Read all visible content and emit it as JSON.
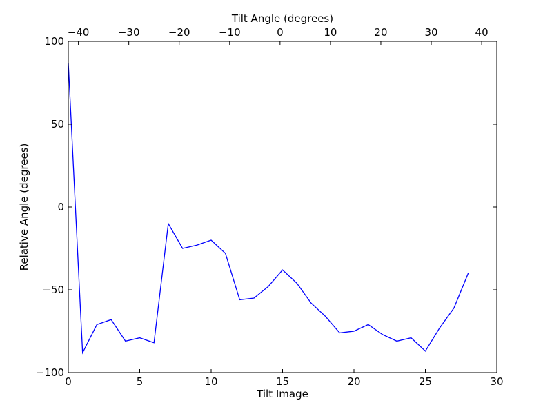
{
  "chart_data": {
    "type": "line",
    "xlabel": "Tilt Image",
    "ylabel": "Relative Angle (degrees)",
    "top_xlabel": "Tilt Angle (degrees)",
    "xlim": [
      0,
      30
    ],
    "ylim": [
      -100,
      100
    ],
    "top_xlim": [
      -42,
      43
    ],
    "xticks": [
      0,
      5,
      10,
      15,
      20,
      25,
      30
    ],
    "yticks": [
      -100,
      -50,
      0,
      50,
      100
    ],
    "top_xticks": [
      -40,
      -30,
      -20,
      -10,
      0,
      10,
      20,
      30,
      40
    ],
    "xtick_labels": [
      "0",
      "5",
      "10",
      "15",
      "20",
      "25",
      "30"
    ],
    "ytick_labels": [
      "−100",
      "−50",
      "0",
      "50",
      "100"
    ],
    "top_xtick_labels": [
      "−40",
      "−30",
      "−20",
      "−10",
      "0",
      "10",
      "20",
      "30",
      "40"
    ],
    "grid": false,
    "series": [
      {
        "color": "#0000ff",
        "x": [
          0,
          1,
          2,
          3,
          4,
          5,
          6,
          7,
          8,
          9,
          10,
          11,
          12,
          13,
          14,
          15,
          16,
          17,
          18,
          19,
          20,
          21,
          22,
          23,
          24,
          25,
          26,
          27,
          28
        ],
        "values": [
          87,
          -88,
          -71,
          -68,
          -81,
          -79,
          -82,
          -10,
          -25,
          -23,
          -20,
          -28,
          -56,
          -55,
          -48,
          -38,
          -46,
          -58,
          -66,
          -76,
          -75,
          -71,
          -77,
          -81,
          -79,
          -87,
          -73,
          -61,
          -40
        ]
      }
    ]
  }
}
